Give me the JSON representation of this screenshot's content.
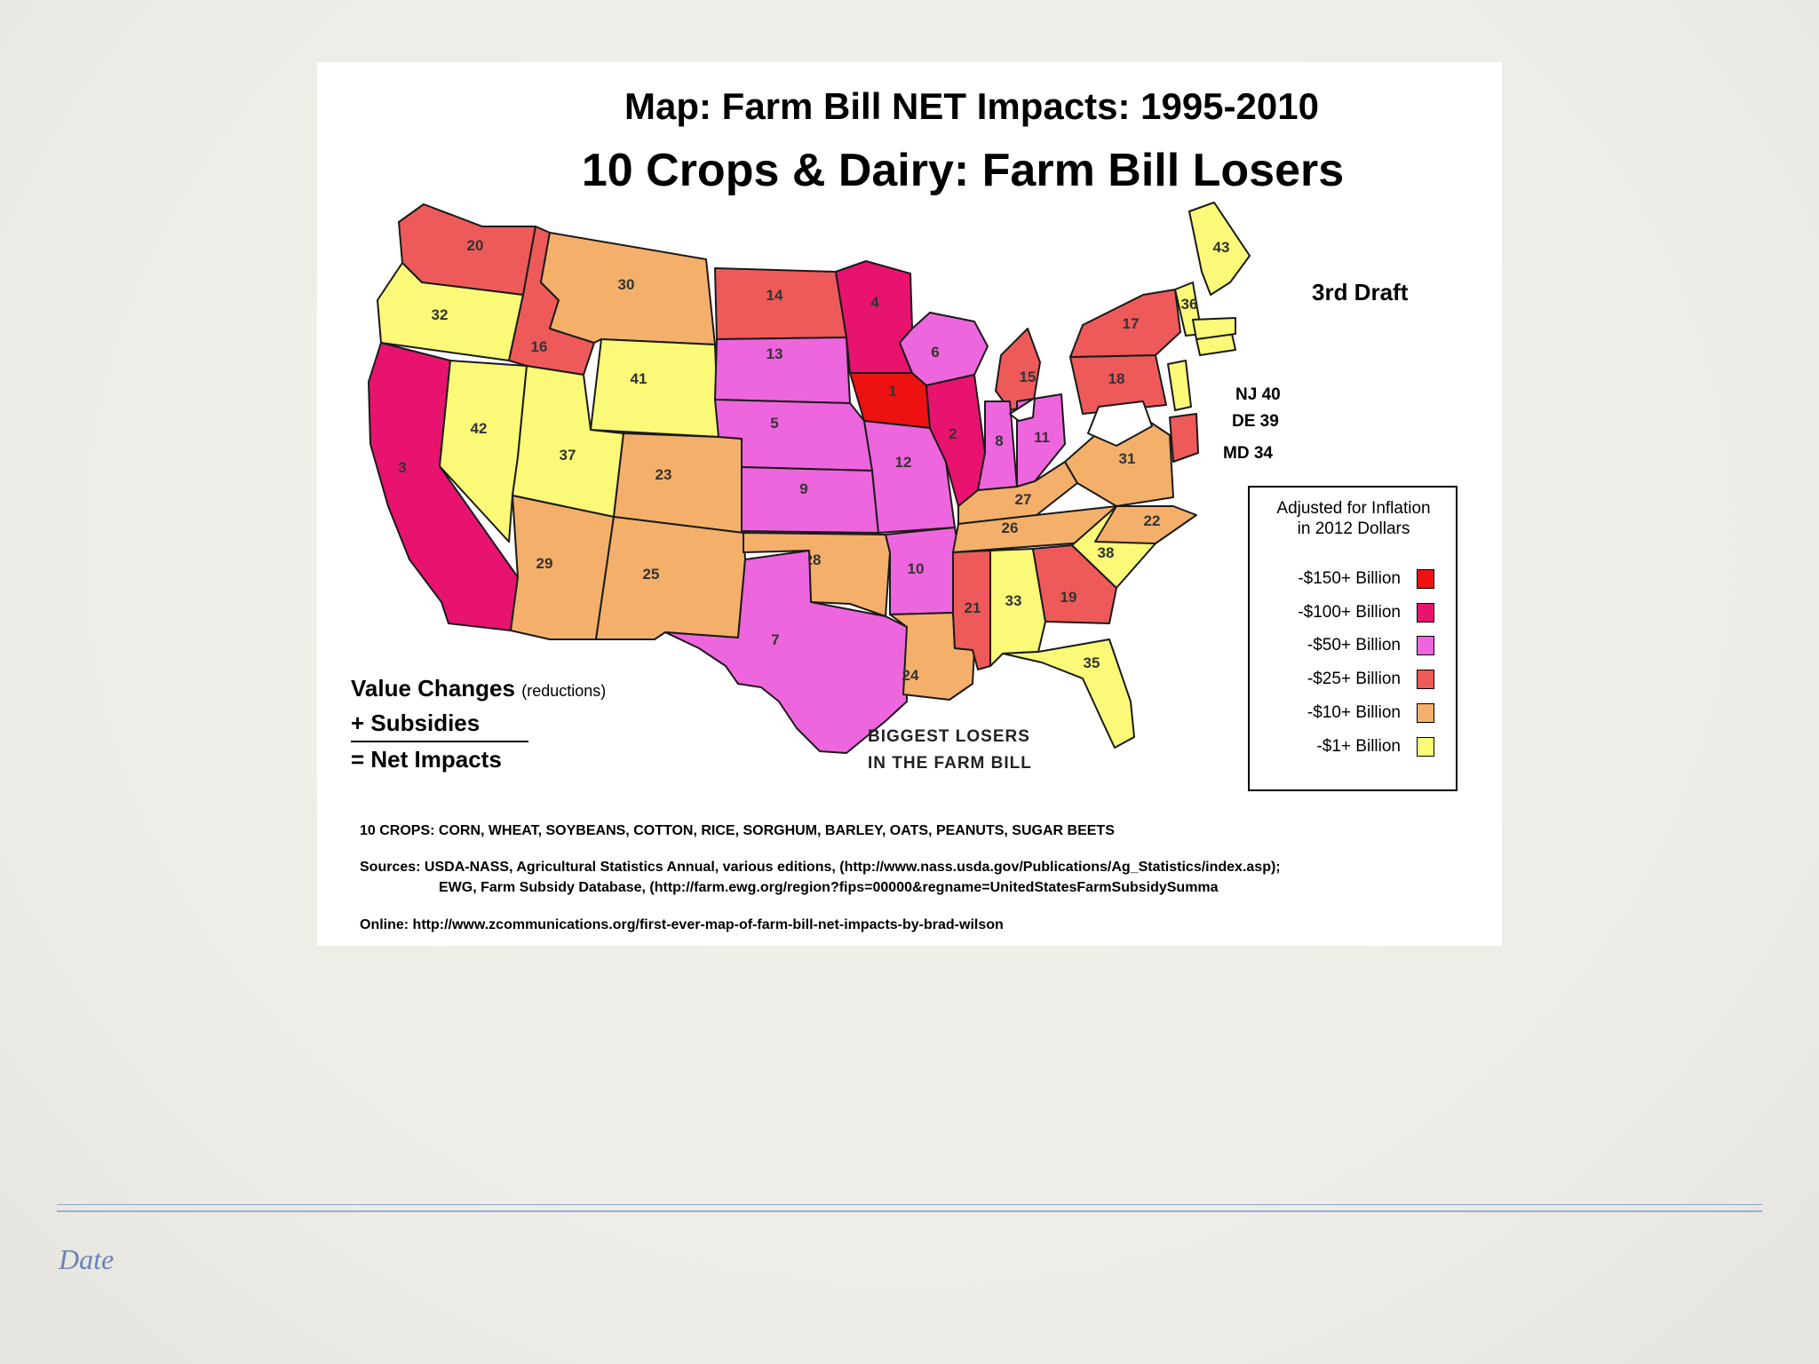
{
  "slide": {
    "footer_date": "Date"
  },
  "map": {
    "title": "Map:  Farm Bill NET Impacts: 1995-2010",
    "subtitle": "10 Crops & Dairy:  Farm Bill Losers",
    "draft": "3rd Draft",
    "legend": {
      "title_line1": "Adjusted for Inflation",
      "title_line2": "in 2012 Dollars",
      "items": [
        {
          "label": "-$150+ Billion",
          "color": "#ee1111"
        },
        {
          "label": "-$100+ Billion",
          "color": "#e8136e"
        },
        {
          "label": "-$50+ Billion",
          "color": "#ee66dd"
        },
        {
          "label": "-$25+ Billion",
          "color": "#ee5a5a"
        },
        {
          "label": "-$10+ Billion",
          "color": "#f4b06a"
        },
        {
          "label": "-$1+ Billion",
          "color": "#fafa78"
        }
      ]
    },
    "formula": {
      "line1": "Value Changes",
      "line1_small": "(reductions)",
      "line2": "+ Subsidies",
      "line3": "= Net Impacts"
    },
    "losers_line1": "BIGGEST LOSERS",
    "losers_line2": "IN THE FARM BILL",
    "side_labels": [
      "NJ 40",
      "DE 39",
      "MD 34"
    ],
    "footer": {
      "crops": "10 CROPS:  CORN, WHEAT, SOYBEANS, COTTON, RICE, SORGHUM, BARLEY, OATS, PEANUTS, SUGAR BEETS",
      "sources_1": "Sources:  USDA-NASS, Agricultural Statistics Annual, various editions, (http://www.nass.usda.gov/Publications/Ag_Statistics/index.asp);",
      "sources_2": "EWG, Farm Subsidy Database, (http://farm.ewg.org/region?fips=00000&regname=UnitedStatesFarmSubsidySumma",
      "online": "Online:  http://www.zcommunications.org/first-ever-map-of-farm-bill-net-impacts-by-brad-wilson"
    },
    "states": [
      {
        "rank": "20",
        "tier": 3
      },
      {
        "rank": "32",
        "tier": 5
      },
      {
        "rank": "3",
        "tier": 1
      },
      {
        "rank": "16",
        "tier": 3
      },
      {
        "rank": "42",
        "tier": 5
      },
      {
        "rank": "30",
        "tier": 4
      },
      {
        "rank": "41",
        "tier": 5
      },
      {
        "rank": "37",
        "tier": 5
      },
      {
        "rank": "23",
        "tier": 4
      },
      {
        "rank": "29",
        "tier": 4
      },
      {
        "rank": "25",
        "tier": 4
      },
      {
        "rank": "14",
        "tier": 3
      },
      {
        "rank": "13",
        "tier": 2
      },
      {
        "rank": "5",
        "tier": 2
      },
      {
        "rank": "9",
        "tier": 2
      },
      {
        "rank": "28",
        "tier": 4
      },
      {
        "rank": "7",
        "tier": 2
      },
      {
        "rank": "4",
        "tier": 1
      },
      {
        "rank": "1",
        "tier": 0
      },
      {
        "rank": "12",
        "tier": 2
      },
      {
        "rank": "10",
        "tier": 2
      },
      {
        "rank": "24",
        "tier": 4
      },
      {
        "rank": "6",
        "tier": 2
      },
      {
        "rank": "2",
        "tier": 1
      },
      {
        "rank": "15",
        "tier": 3
      },
      {
        "rank": "8",
        "tier": 2
      },
      {
        "rank": "11",
        "tier": 2
      },
      {
        "rank": "27",
        "tier": 4
      },
      {
        "rank": "26",
        "tier": 4
      },
      {
        "rank": "21",
        "tier": 3
      },
      {
        "rank": "33",
        "tier": 5
      },
      {
        "rank": "19",
        "tier": 3
      },
      {
        "rank": "35",
        "tier": 5
      },
      {
        "rank": "38",
        "tier": 5
      },
      {
        "rank": "22",
        "tier": 4
      },
      {
        "rank": "31",
        "tier": 4
      },
      {
        "rank": "18",
        "tier": 3
      },
      {
        "rank": "17",
        "tier": 3
      },
      {
        "rank": "43",
        "tier": 5
      },
      {
        "rank": "36",
        "tier": 5
      },
      {
        "rank": "",
        "tier": 3
      },
      {
        "rank": "",
        "tier": 6
      },
      {
        "rank": "",
        "tier": 5
      },
      {
        "rank": "",
        "tier": 5
      },
      {
        "rank": "",
        "tier": 5
      },
      {
        "rank": "",
        "tier": 6
      }
    ],
    "no_data_color": "#ffffff"
  }
}
